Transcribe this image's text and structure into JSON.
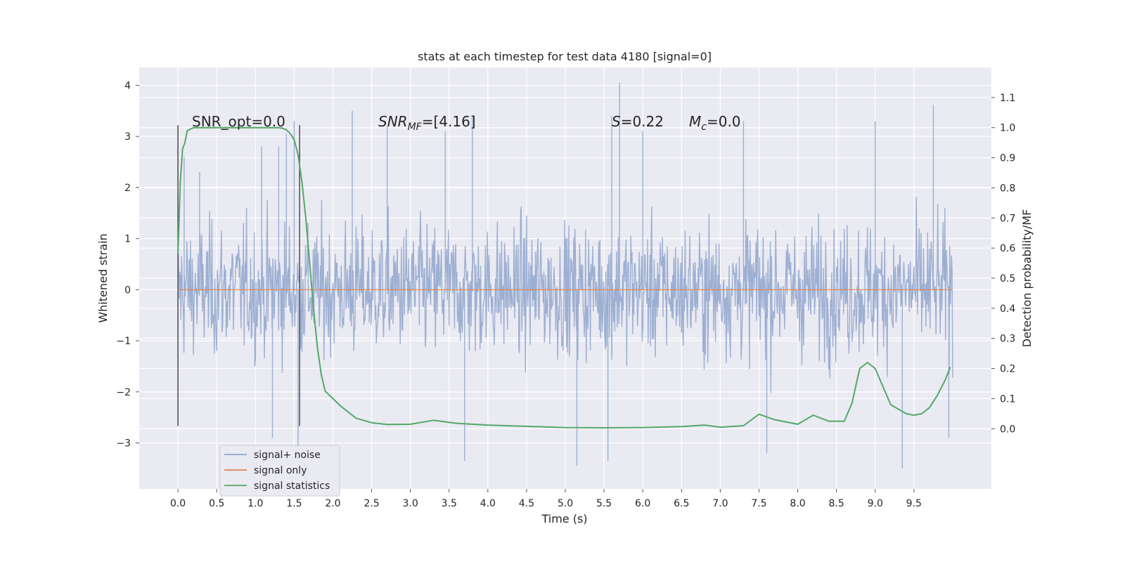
{
  "chart_data": {
    "type": "line",
    "title": "stats at each timestep for test data 4180 [signal=0]",
    "xlabel": "Time (s)",
    "ylabel": "Whitened strain",
    "ylabel_right": "Detection probability/MF",
    "xlim": [
      -0.5,
      10.5
    ],
    "ylim": [
      -3.9,
      4.35
    ],
    "ylim_right": [
      -0.2,
      1.2
    ],
    "x_ticks": [
      "0.0",
      "0.5",
      "1.0",
      "1.5",
      "2.0",
      "2.5",
      "3.0",
      "3.5",
      "4.0",
      "4.5",
      "5.0",
      "5.5",
      "6.0",
      "6.5",
      "7.0",
      "7.5",
      "8.0",
      "8.5",
      "9.0",
      "9.5"
    ],
    "y_ticks": [
      "−3",
      "−2",
      "−1",
      "0",
      "1",
      "2",
      "3",
      "4"
    ],
    "y_ticks_right": [
      "0.0",
      "0.1",
      "0.2",
      "0.3",
      "0.4",
      "0.5",
      "0.6",
      "0.7",
      "0.8",
      "0.9",
      "1.0",
      "1.1"
    ],
    "grid": true,
    "legend_position": "lower-left",
    "annotations": {
      "snr_opt": "SNR_opt=0.0",
      "snr_mf_italic": "SNR",
      "snr_mf_sub": "MF",
      "snr_mf_value": "=[4.16]",
      "s_italic": "S",
      "s_value": "=0.22",
      "mc_italic": "M",
      "mc_sub": "c",
      "mc_value": "=0.0"
    },
    "markers": [
      {
        "x": 0.0,
        "y_range": [
          -2.67,
          3.22
        ]
      },
      {
        "x": 1.57,
        "y_range": [
          -2.67,
          3.22
        ]
      }
    ],
    "series": [
      {
        "name": "signal+ noise",
        "color": "#8fa4cc",
        "axis": "left",
        "x_range": [
          0.0,
          10.0
        ],
        "envelope_typical": [
          -2.0,
          2.0
        ],
        "peaks": [
          {
            "x": 0.08,
            "y": 2.6
          },
          {
            "x": 0.28,
            "y": 2.3
          },
          {
            "x": 1.08,
            "y": 2.8
          },
          {
            "x": 1.3,
            "y": 2.8
          },
          {
            "x": 1.4,
            "y": 3.05
          },
          {
            "x": 1.5,
            "y": 3.3
          },
          {
            "x": 2.25,
            "y": 3.5
          },
          {
            "x": 2.7,
            "y": 3.2
          },
          {
            "x": 3.45,
            "y": 3.1
          },
          {
            "x": 3.8,
            "y": 3.4
          },
          {
            "x": 5.6,
            "y": 3.4
          },
          {
            "x": 5.7,
            "y": 4.05
          },
          {
            "x": 6.0,
            "y": 3.1
          },
          {
            "x": 7.3,
            "y": 3.3
          },
          {
            "x": 9.0,
            "y": 3.3
          },
          {
            "x": 9.75,
            "y": 3.62
          }
        ],
        "troughs": [
          {
            "x": 1.22,
            "y": -2.9
          },
          {
            "x": 1.55,
            "y": -3.3
          },
          {
            "x": 3.7,
            "y": -3.35
          },
          {
            "x": 5.15,
            "y": -3.45
          },
          {
            "x": 5.55,
            "y": -3.35
          },
          {
            "x": 7.6,
            "y": -3.2
          },
          {
            "x": 9.35,
            "y": -3.5
          },
          {
            "x": 9.95,
            "y": -2.9
          }
        ]
      },
      {
        "name": "signal only",
        "color": "#dd8452",
        "axis": "left",
        "x": [
          0.0,
          10.0
        ],
        "y": [
          0.0,
          0.0
        ]
      },
      {
        "name": "signal statistics",
        "color": "#55a868",
        "axis": "right",
        "x": [
          0.0,
          0.03,
          0.06,
          0.09,
          0.12,
          0.16,
          0.2,
          0.3,
          0.5,
          0.8,
          1.0,
          1.2,
          1.3,
          1.35,
          1.4,
          1.45,
          1.5,
          1.55,
          1.6,
          1.65,
          1.7,
          1.75,
          1.8,
          1.85,
          1.9,
          2.0,
          2.1,
          2.3,
          2.5,
          2.7,
          3.0,
          3.3,
          3.6,
          4.0,
          4.5,
          5.0,
          5.5,
          6.0,
          6.5,
          6.8,
          7.0,
          7.3,
          7.5,
          7.7,
          8.0,
          8.2,
          8.4,
          8.6,
          8.7,
          8.8,
          8.9,
          9.0,
          9.2,
          9.4,
          9.5,
          9.6,
          9.7,
          9.8,
          9.9,
          9.97
        ],
        "y": [
          0.58,
          0.82,
          0.93,
          0.95,
          0.99,
          0.995,
          1.0,
          1.0,
          1.0,
          1.0,
          1.0,
          1.0,
          1.0,
          0.998,
          0.993,
          0.98,
          0.96,
          0.91,
          0.82,
          0.7,
          0.55,
          0.4,
          0.27,
          0.18,
          0.125,
          0.1,
          0.075,
          0.035,
          0.02,
          0.014,
          0.015,
          0.028,
          0.018,
          0.012,
          0.008,
          0.004,
          0.003,
          0.004,
          0.007,
          0.012,
          0.005,
          0.01,
          0.048,
          0.03,
          0.015,
          0.045,
          0.025,
          0.025,
          0.085,
          0.2,
          0.22,
          0.2,
          0.08,
          0.05,
          0.045,
          0.05,
          0.07,
          0.11,
          0.16,
          0.205
        ]
      }
    ]
  }
}
